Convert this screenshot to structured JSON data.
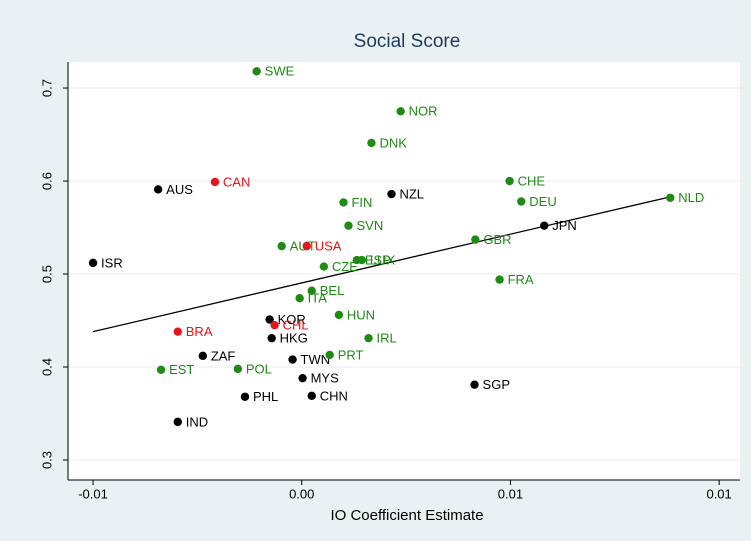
{
  "chart_data": {
    "type": "scatter",
    "title": "Social Score",
    "x_label": "IO Coefficient Estimate",
    "xlim": [
      -0.0056,
      0.0105
    ],
    "ylim": [
      0.2785,
      0.728
    ],
    "xticks": [
      {
        "value": -0.005,
        "label": "-0.01"
      },
      {
        "value": 0,
        "label": "0.00"
      },
      {
        "value": 0.005,
        "label": "0.01"
      },
      {
        "value": 0.01,
        "label": "0.01"
      }
    ],
    "yticks": [
      0.3,
      0.4,
      0.5,
      0.6,
      0.7
    ],
    "grid": true,
    "fit_color": "#000000",
    "fit": {
      "x": [
        -0.005,
        0.00883
      ],
      "values": [
        0.438,
        0.583
      ]
    },
    "points": [
      {
        "label": "SWE",
        "x": -0.00108,
        "y": 0.718,
        "color": "#1f8a14"
      },
      {
        "label": "NOR",
        "x": 0.00237,
        "y": 0.675,
        "color": "#1f8a14"
      },
      {
        "label": "DNK",
        "x": 0.00167,
        "y": 0.641,
        "color": "#1f8a14"
      },
      {
        "label": "CHE",
        "x": 0.00498,
        "y": 0.6,
        "color": "#1f8a14"
      },
      {
        "label": "DEU",
        "x": 0.00526,
        "y": 0.578,
        "color": "#1f8a14"
      },
      {
        "label": "NLD",
        "x": 0.00883,
        "y": 0.582,
        "color": "#1f8a14"
      },
      {
        "label": "AUS",
        "x": -0.00344,
        "y": 0.591,
        "color": "#000000"
      },
      {
        "label": "CAN",
        "x": -0.00208,
        "y": 0.599,
        "color": "#e8131b"
      },
      {
        "label": "NZL",
        "x": 0.00215,
        "y": 0.586,
        "color": "#000000"
      },
      {
        "label": "FIN",
        "x": 0.001,
        "y": 0.577,
        "color": "#1f8a14"
      },
      {
        "label": "SVN",
        "x": 0.00112,
        "y": 0.552,
        "color": "#1f8a14"
      },
      {
        "label": "JPN",
        "x": 0.00581,
        "y": 0.552,
        "color": "#000000"
      },
      {
        "label": "GBR",
        "x": 0.00416,
        "y": 0.537,
        "color": "#1f8a14"
      },
      {
        "label": "ISR",
        "x": -0.005,
        "y": 0.512,
        "color": "#000000"
      },
      {
        "label": "AUT",
        "x": -0.00048,
        "y": 0.53,
        "color": "#1f8a14"
      },
      {
        "label": "USA",
        "x": 0.00012,
        "y": 0.53,
        "color": "#e8131b"
      },
      {
        "label": "ESP",
        "x": 0.00132,
        "y": 0.515,
        "color": "#1f8a14"
      },
      {
        "label": "LUX",
        "x": 0.00144,
        "y": 0.515,
        "color": "#1f8a14"
      },
      {
        "label": "CZE",
        "x": 0.00053,
        "y": 0.508,
        "color": "#1f8a14"
      },
      {
        "label": "FRA",
        "x": 0.00474,
        "y": 0.494,
        "color": "#1f8a14"
      },
      {
        "label": "BEL",
        "x": 0.00024,
        "y": 0.482,
        "color": "#1f8a14"
      },
      {
        "label": "ITA",
        "x": -5e-05,
        "y": 0.474,
        "color": "#1f8a14"
      },
      {
        "label": "HUN",
        "x": 0.00089,
        "y": 0.456,
        "color": "#1f8a14"
      },
      {
        "label": "KOR",
        "x": -0.00077,
        "y": 0.451,
        "color": "#000000"
      },
      {
        "label": "CHL",
        "x": -0.00065,
        "y": 0.445,
        "color": "#e8131b"
      },
      {
        "label": "BRA",
        "x": -0.00297,
        "y": 0.438,
        "color": "#e8131b"
      },
      {
        "label": "HKG",
        "x": -0.00072,
        "y": 0.431,
        "color": "#000000"
      },
      {
        "label": "IRL",
        "x": 0.0016,
        "y": 0.431,
        "color": "#1f8a14"
      },
      {
        "label": "ZAF",
        "x": -0.00237,
        "y": 0.412,
        "color": "#000000"
      },
      {
        "label": "TWN",
        "x": -0.00022,
        "y": 0.408,
        "color": "#000000"
      },
      {
        "label": "PRT",
        "x": 0.00067,
        "y": 0.413,
        "color": "#1f8a14"
      },
      {
        "label": "EST",
        "x": -0.00337,
        "y": 0.397,
        "color": "#1f8a14"
      },
      {
        "label": "POL",
        "x": -0.00153,
        "y": 0.398,
        "color": "#1f8a14"
      },
      {
        "label": "MYS",
        "x": 2e-05,
        "y": 0.388,
        "color": "#000000"
      },
      {
        "label": "SGP",
        "x": 0.00414,
        "y": 0.381,
        "color": "#000000"
      },
      {
        "label": "PHL",
        "x": -0.00136,
        "y": 0.368,
        "color": "#000000"
      },
      {
        "label": "CHN",
        "x": 0.00024,
        "y": 0.369,
        "color": "#000000"
      },
      {
        "label": "IND",
        "x": -0.00297,
        "y": 0.341,
        "color": "#000000"
      }
    ]
  }
}
